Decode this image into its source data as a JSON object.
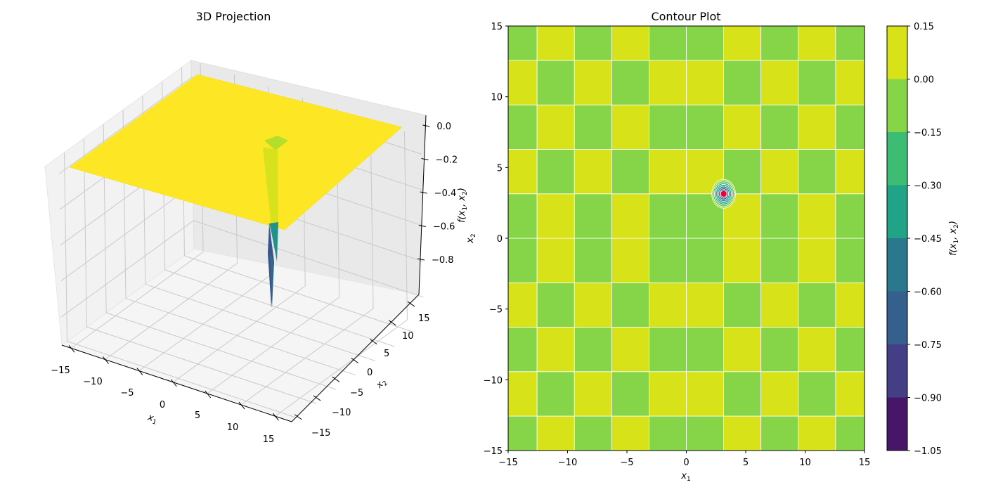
{
  "chart_data": [
    {
      "type": "surface",
      "title": "3D Projection",
      "xlabel": "x1",
      "ylabel": "x2",
      "zlabel": "f(x1, x2)",
      "xlim": [
        -15,
        15
      ],
      "ylim": [
        -15,
        15
      ],
      "zlim": [
        -1.0,
        0.0
      ],
      "x_ticks": [
        "−15",
        "−10",
        "−5",
        "0",
        "5",
        "10",
        "15"
      ],
      "y_ticks": [
        "−15",
        "−10",
        "−5",
        "0",
        "5",
        "10",
        "15"
      ],
      "z_ticks": [
        "0.0",
        "−0.2",
        "−0.4",
        "−0.6",
        "−0.8"
      ],
      "grid": true,
      "colormap": "viridis",
      "minimum": {
        "x1": 3.14,
        "x2": 3.14,
        "f": -1.0
      },
      "plateau_value": 0.0
    },
    {
      "type": "contour",
      "title": "Contour Plot",
      "xlabel": "x1",
      "ylabel": "x2",
      "xlim": [
        -15,
        15
      ],
      "ylim": [
        -15,
        15
      ],
      "x_ticks": [
        "−15",
        "−10",
        "−5",
        "0",
        "5",
        "10",
        "15"
      ],
      "y_ticks": [
        "−15",
        "−10",
        "−5",
        "0",
        "5",
        "10",
        "15"
      ],
      "colorbar_label": "f(x1, x2)",
      "colorbar_ticks": [
        "0.15",
        "0.00",
        "−0.15",
        "−0.30",
        "−0.45",
        "−0.60",
        "−0.75",
        "−0.90",
        "−1.05"
      ],
      "levels": [
        -1.05,
        -0.9,
        -0.75,
        -0.6,
        -0.45,
        -0.3,
        -0.15,
        0.0,
        0.15
      ],
      "level_colors": [
        "#481668",
        "#433e85",
        "#35608d",
        "#29788e",
        "#20a386",
        "#3dbc74",
        "#86d549",
        "#d8e219"
      ],
      "checker_period": 3.14159,
      "minimum_marker": {
        "x1": 3.14,
        "x2": 3.14,
        "color": "#e8003b"
      }
    }
  ]
}
